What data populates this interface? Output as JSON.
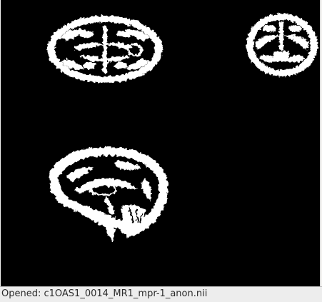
{
  "viewer": {
    "background_color": "#000000",
    "tissue_color": "#ffffff",
    "panels": [
      {
        "view": "axial",
        "icon": "brain-axial-slice-icon"
      },
      {
        "view": "coronal",
        "icon": "brain-coronal-slice-icon"
      },
      {
        "view": "sagittal",
        "icon": "brain-sagittal-slice-icon"
      }
    ]
  },
  "statusbar": {
    "text": "Opened: c1OAS1_0014_MR1_mpr-1_anon.nii"
  }
}
